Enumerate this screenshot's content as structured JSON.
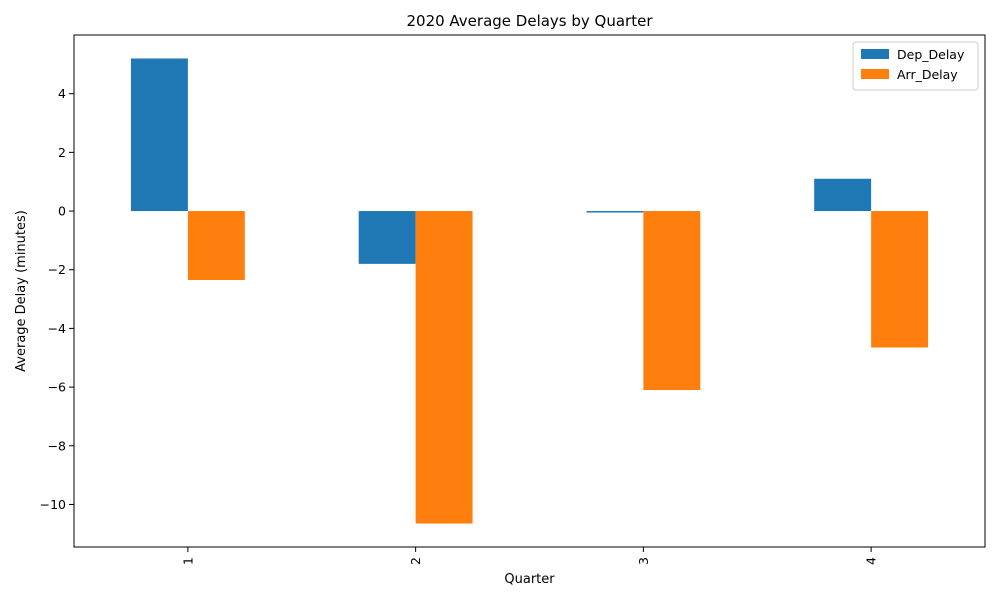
{
  "chart_data": {
    "type": "bar",
    "title": "2020 Average Delays by Quarter",
    "xlabel": "Quarter",
    "ylabel": "Average Delay (minutes)",
    "categories": [
      "1",
      "2",
      "3",
      "4"
    ],
    "series": [
      {
        "name": "Dep_Delay",
        "color": "#1f77b4",
        "values": [
          5.2,
          -1.8,
          -0.05,
          1.1
        ]
      },
      {
        "name": "Arr_Delay",
        "color": "#ff7f0e",
        "values": [
          -2.35,
          -10.65,
          -6.1,
          -4.65
        ]
      }
    ],
    "ylim": [
      -11.45,
      6.0
    ],
    "yticks": [
      4,
      2,
      0,
      -2,
      -4,
      -6,
      -8,
      -10
    ],
    "ytick_labels": [
      "4",
      "2",
      "0",
      "−2",
      "−4",
      "−6",
      "−8",
      "−10"
    ],
    "legend_position": "top-right",
    "grid": false
  }
}
